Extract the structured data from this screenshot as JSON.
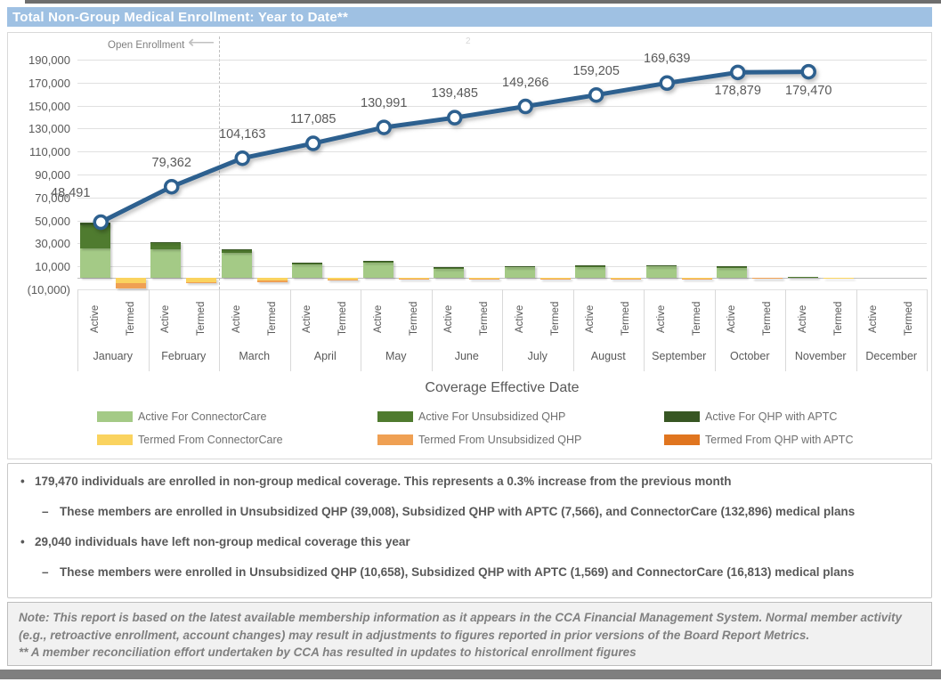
{
  "title": "Total Non-Group Medical Enrollment: Year to Date**",
  "annotations": {
    "open_enrollment": "Open Enrollment",
    "page_marker": "2"
  },
  "chart_data": {
    "type": "combo: stacked bar + line",
    "xlabel": "Coverage Effective Date",
    "months": [
      "January",
      "February",
      "March",
      "April",
      "May",
      "June",
      "July",
      "August",
      "September",
      "October",
      "November",
      "December"
    ],
    "category_sublabels": [
      "Active",
      "Termed"
    ],
    "y_axis": {
      "values": [
        190000,
        170000,
        150000,
        130000,
        110000,
        90000,
        70000,
        50000,
        30000,
        10000,
        -10000
      ],
      "ticks": [
        "190,000",
        "170,000",
        "150,000",
        "130,000",
        "110,000",
        "90,000",
        "70,000",
        "50,000",
        "30,000",
        "10,000",
        "(10,000)"
      ],
      "ylim": [
        -10000,
        190000
      ],
      "grid": true
    },
    "line_series": {
      "color": "#2d608f",
      "points": [
        {
          "month": "January",
          "value": 48491,
          "label": "48,491",
          "label_pos": "above-left"
        },
        {
          "month": "February",
          "value": 79362,
          "label": "79,362",
          "label_pos": "above"
        },
        {
          "month": "March",
          "value": 104163,
          "label": "104,163",
          "label_pos": "above"
        },
        {
          "month": "April",
          "value": 117085,
          "label": "117,085",
          "label_pos": "above"
        },
        {
          "month": "May",
          "value": 130991,
          "label": "130,991",
          "label_pos": "above"
        },
        {
          "month": "June",
          "value": 139485,
          "label": "139,485",
          "label_pos": "above"
        },
        {
          "month": "July",
          "value": 149266,
          "label": "149,266",
          "label_pos": "above"
        },
        {
          "month": "August",
          "value": 159205,
          "label": "159,205",
          "label_pos": "above"
        },
        {
          "month": "September",
          "value": 169639,
          "label": "169,639",
          "label_pos": "above"
        },
        {
          "month": "October",
          "value": 178879,
          "label": "178,879",
          "label_pos": "below"
        },
        {
          "month": "November",
          "value": 179470,
          "label": "179,470",
          "label_pos": "below"
        }
      ]
    },
    "bar_series": [
      {
        "name": "Active For ConnectorCare",
        "group": "active",
        "color": "#a4ca86",
        "values": [
          26000,
          25000,
          21500,
          11500,
          13000,
          8000,
          9200,
          9500,
          9800,
          8800,
          500,
          0
        ]
      },
      {
        "name": "Active For Unsubsidized QHP",
        "group": "active",
        "color": "#4f7b2f",
        "values": [
          19500,
          5500,
          2800,
          1300,
          1300,
          900,
          800,
          900,
          900,
          900,
          100,
          0
        ]
      },
      {
        "name": "Active For QHP with APTC",
        "group": "active",
        "color": "#375623",
        "values": [
          3000,
          800,
          500,
          200,
          200,
          150,
          150,
          150,
          150,
          150,
          0,
          0
        ]
      },
      {
        "name": "Termed From ConnectorCare",
        "group": "termed",
        "color": "#fad35f",
        "values": [
          -4500,
          -3500,
          -2500,
          -1200,
          -800,
          -500,
          -400,
          -400,
          -400,
          -300,
          -100,
          0
        ]
      },
      {
        "name": "Termed From Unsubsidized QHP",
        "group": "termed",
        "color": "#efa053",
        "values": [
          -5000,
          -1000,
          -1000,
          -500,
          -400,
          -300,
          -100,
          -100,
          -100,
          -100,
          0,
          0
        ]
      },
      {
        "name": "Termed From QHP with APTC",
        "group": "termed",
        "color": "#e0751f",
        "values": [
          0,
          0,
          0,
          0,
          0,
          0,
          0,
          0,
          0,
          0,
          0,
          0
        ]
      }
    ],
    "legend": [
      {
        "label": "Active For ConnectorCare",
        "color": "#a4ca86"
      },
      {
        "label": "Active For Unsubsidized QHP",
        "color": "#4f7b2f"
      },
      {
        "label": "Active For QHP with APTC",
        "color": "#375623"
      },
      {
        "label": "Termed From ConnectorCare",
        "color": "#fad35f"
      },
      {
        "label": "Termed From Unsubsidized QHP",
        "color": "#efa053"
      },
      {
        "label": "Termed From QHP with APTC",
        "color": "#e0751f"
      }
    ],
    "bar_values_note": "bar segment values estimated from pixel heights"
  },
  "bullets": [
    {
      "level": 1,
      "text": "179,470 individuals are enrolled in non-group medical coverage. This represents a 0.3% increase from the previous month"
    },
    {
      "level": 2,
      "text": "These members are enrolled in Unsubsidized QHP (39,008), Subsidized QHP with APTC (7,566), and ConnectorCare (132,896) medical plans"
    },
    {
      "level": 1,
      "text": "29,040 individuals have left non-group medical coverage this year"
    },
    {
      "level": 2,
      "text": "These members were enrolled in Unsubsidized QHP (10,658), Subsidized QHP with APTC (1,569) and ConnectorCare (16,813) medical plans"
    }
  ],
  "note": {
    "line1": "Note: This report is based on the latest available membership information as it appears in the CCA Financial Management System. Normal member activity (e.g., retroactive enrollment, account changes) may result in adjustments to figures reported in prior versions of the Board Report Metrics.",
    "line2": "** A member reconciliation effort undertaken by CCA has resulted in updates to historical enrollment figures"
  },
  "colors": {
    "title_bar": "#9fc1e3",
    "line": "#2d608f",
    "grid": "#e0e0e0",
    "axis_text": "#595959",
    "note_text": "#808080",
    "frame_strip": "#7f7f7f"
  }
}
